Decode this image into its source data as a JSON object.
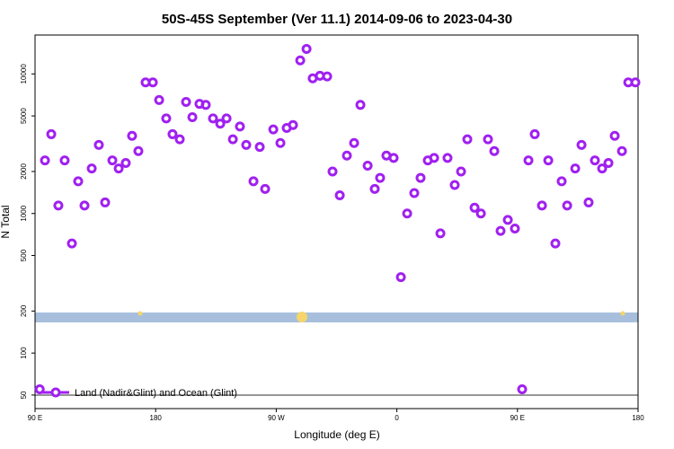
{
  "chart_data": {
    "type": "scatter",
    "title": "50S-45S September (Ver 11.1)   2014-09-06 to 2023-04-30",
    "x_label": "Longitude (deg E)",
    "y_label": "N Total",
    "log_y": true,
    "xlim": [
      90,
      540
    ],
    "ylim": [
      40,
      19000
    ],
    "xticks": [
      {
        "value": 90,
        "label": "90 E"
      },
      180,
      {
        "value": 270,
        "label": "90 W"
      },
      {
        "value": 360,
        "label": "0"
      },
      {
        "value": 450,
        "label": "90 E"
      },
      {
        "value": 540,
        "label": "180"
      }
    ],
    "yticks": [
      50,
      100,
      200,
      500,
      1000,
      2000,
      5000,
      10000
    ],
    "legend": "bottom-left",
    "series": [
      {
        "name": "Land (Nadir&Glint) and Ocean (Glint)",
        "color": "#a020f0",
        "x": [
          93.5,
          97.4,
          102.1,
          107.4,
          112.1,
          117.5,
          122.2,
          126.9,
          132.3,
          137.6,
          142.3,
          147.7,
          152.4,
          157.7,
          162.4,
          167.1,
          172.5,
          177.9,
          182.6,
          187.9,
          192.6,
          198,
          202.7,
          207.4,
          212.7,
          217.4,
          222.8,
          228.2,
          232.9,
          237.6,
          242.9,
          247.6,
          253,
          257.7,
          261.7,
          267.8,
          273.1,
          277.8,
          282.5,
          287.9,
          292.6,
          297.2,
          302.6,
          308,
          312,
          317.4,
          322.7,
          328.1,
          332.8,
          338.2,
          343.5,
          347.5,
          352.2,
          357.6,
          363,
          367.7,
          373,
          377.7,
          383.1,
          387.8,
          392.5,
          397.8,
          403.2,
          407.9,
          412.6,
          418,
          422.7,
          428,
          432.7,
          437.4,
          442.8,
          448.1,
          453.5,
          458.2,
          462.9,
          468.3,
          473,
          478.3,
          483,
          487.1,
          493.1,
          497.8,
          503.1,
          507.8,
          513.2,
          517.9,
          522.6,
          528,
          532.7,
          538
        ],
        "values": [
          55,
          2400,
          3700,
          1140,
          2400,
          610,
          1700,
          1140,
          2100,
          3100,
          1200,
          2400,
          2100,
          2300,
          3600,
          2800,
          8700,
          8700,
          6500,
          4800,
          3700,
          3400,
          6300,
          4900,
          6100,
          6000,
          4800,
          4400,
          4800,
          3400,
          4200,
          3100,
          1700,
          3000,
          1500,
          4000,
          3200,
          4100,
          4300,
          12500,
          15100,
          9300,
          9700,
          9600,
          2000,
          1350,
          2600,
          3200,
          6000,
          2200,
          1500,
          1800,
          2600,
          2500,
          350,
          1000,
          1400,
          1800,
          2400,
          2500,
          720,
          2500,
          1600,
          2000,
          3400,
          1100,
          1000,
          3400,
          2800,
          750,
          900,
          780,
          55,
          2400,
          3700,
          1140,
          2400,
          610,
          1700,
          1140,
          2100,
          3100,
          1200,
          2400,
          2100,
          2300,
          3600,
          2800,
          8700,
          8700
        ]
      }
    ]
  }
}
